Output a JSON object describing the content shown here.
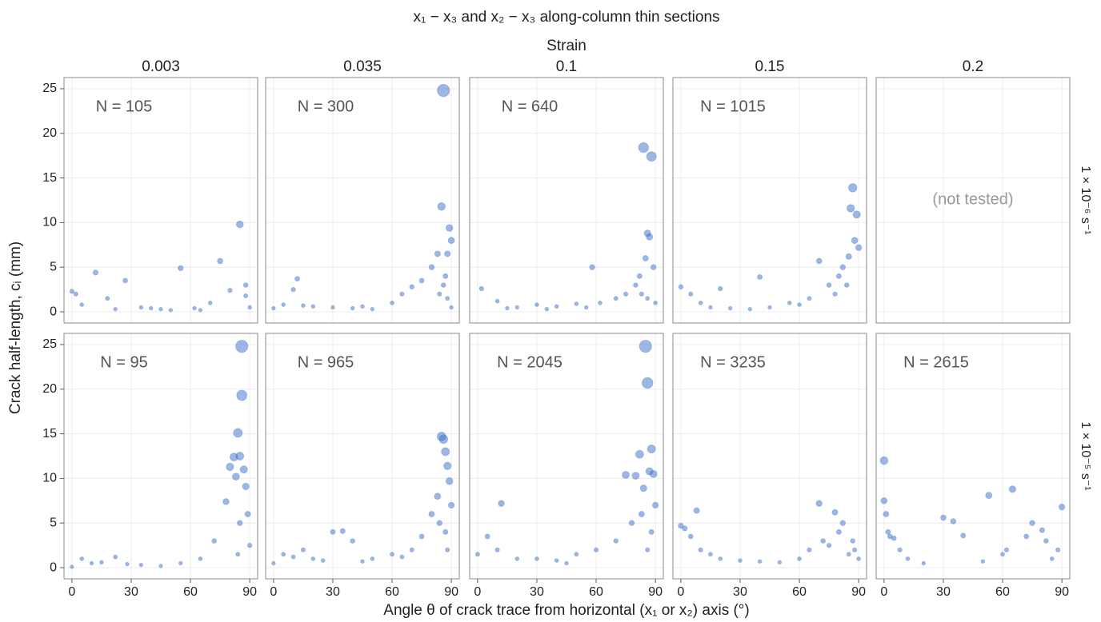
{
  "chart_data": {
    "type": "scatter",
    "title": "x₁ − x₃ and x₂ − x₃ along-column thin sections",
    "subtitle": "Strain",
    "columns": [
      "0.003",
      "0.035",
      "0.1",
      "0.15",
      "0.2"
    ],
    "rows": [
      "1 × 10⁻⁶ s⁻¹",
      "1 × 10⁻⁵ s⁻¹"
    ],
    "x_label": "Angle θ of crack trace from horizontal (x₁ or x₂) axis  (°)",
    "y_label": "Crack half-length, cᵢ  (mm)",
    "xlim": [
      -4,
      94
    ],
    "xticks": [
      0,
      30,
      60,
      90
    ],
    "ylim": [
      -1.25,
      26.25
    ],
    "yticks": [
      0,
      5,
      10,
      15,
      20,
      25
    ],
    "grid": true,
    "color": "#3a6fc8",
    "panels": [
      [
        {
          "annotation": "N = 105",
          "x": [
            0,
            2,
            12,
            18,
            27,
            35,
            45,
            55,
            62,
            75,
            80,
            85,
            88,
            90,
            5,
            22,
            50,
            70,
            88,
            40,
            65
          ],
          "y": [
            2.3,
            2,
            4.4,
            1.5,
            3.5,
            0.5,
            0.3,
            4.9,
            0.4,
            5.7,
            2.4,
            9.8,
            3,
            0.5,
            0.8,
            0.3,
            0.2,
            1,
            1.8,
            0.4,
            0.2
          ]
        },
        {
          "annotation": "N = 300",
          "x": [
            0,
            5,
            10,
            12,
            20,
            30,
            40,
            50,
            60,
            65,
            70,
            75,
            80,
            83,
            85,
            86,
            87,
            88,
            89,
            90,
            90,
            88,
            84,
            86,
            15,
            45
          ],
          "y": [
            0.4,
            0.8,
            2.5,
            3.7,
            0.6,
            0.5,
            0.4,
            0.3,
            1,
            2,
            2.8,
            3.5,
            5,
            6.5,
            11.8,
            24.8,
            4,
            6.5,
            9.4,
            8,
            0.5,
            1.5,
            2,
            3,
            0.7,
            0.6
          ]
        },
        {
          "annotation": "N = 640",
          "x": [
            2,
            10,
            20,
            30,
            40,
            50,
            58,
            62,
            70,
            75,
            80,
            82,
            84,
            86,
            88,
            89,
            90,
            87,
            85,
            83,
            86,
            15,
            35,
            55
          ],
          "y": [
            2.6,
            1.2,
            0.5,
            0.8,
            0.6,
            0.9,
            5,
            1,
            1.5,
            2,
            3,
            4,
            18.4,
            8.8,
            17.4,
            5,
            1,
            8.4,
            6,
            2,
            1.5,
            0.4,
            0.3,
            0.5
          ]
        },
        {
          "annotation": "N = 1015",
          "x": [
            0,
            5,
            10,
            15,
            25,
            35,
            45,
            55,
            65,
            70,
            75,
            80,
            82,
            84,
            86,
            87,
            88,
            89,
            90,
            85,
            78,
            60,
            20,
            40
          ],
          "y": [
            2.8,
            2,
            1,
            0.5,
            0.4,
            0.3,
            0.5,
            1,
            1.5,
            5.7,
            3,
            4,
            5,
            3,
            11.6,
            13.9,
            8,
            10.9,
            7.2,
            6.2,
            2,
            0.8,
            2.6,
            3.9
          ]
        },
        {
          "annotation": "(not tested)",
          "x": [],
          "y": []
        }
      ],
      [
        {
          "annotation": "N = 95",
          "x": [
            0,
            5,
            10,
            15,
            22,
            28,
            35,
            45,
            55,
            65,
            72,
            78,
            80,
            82,
            83,
            84,
            85,
            86,
            86,
            87,
            88,
            89,
            90,
            85,
            84
          ],
          "y": [
            0.1,
            1,
            0.5,
            0.6,
            1.2,
            0.4,
            0.3,
            0.2,
            0.5,
            1,
            3,
            7.4,
            11.3,
            12.4,
            10.2,
            15.1,
            12.5,
            19.3,
            24.8,
            11,
            9.1,
            6,
            2.5,
            5,
            1.5
          ]
        },
        {
          "annotation": "N = 965",
          "x": [
            0,
            5,
            10,
            15,
            20,
            25,
            30,
            35,
            40,
            50,
            60,
            65,
            70,
            75,
            80,
            83,
            85,
            86,
            87,
            88,
            89,
            90,
            84,
            87,
            88,
            45
          ],
          "y": [
            0.5,
            1.5,
            1.2,
            2,
            1,
            0.8,
            4,
            4.1,
            3,
            1,
            1.5,
            1.2,
            2,
            3.5,
            6,
            8,
            14.7,
            14.4,
            13,
            11.4,
            9.7,
            7,
            5,
            4,
            2,
            0.7
          ]
        },
        {
          "annotation": "N = 2045",
          "x": [
            0,
            5,
            10,
            12,
            20,
            30,
            40,
            50,
            60,
            70,
            75,
            78,
            80,
            82,
            84,
            85,
            86,
            87,
            88,
            89,
            90,
            83,
            88,
            86,
            45
          ],
          "y": [
            1.5,
            3.5,
            2,
            7.2,
            1,
            1,
            0.8,
            1.5,
            2,
            3,
            10.4,
            5,
            10.3,
            12.7,
            8.9,
            24.8,
            20.7,
            10.8,
            13.3,
            10.5,
            7,
            6,
            4,
            2,
            0.5
          ]
        },
        {
          "annotation": "N = 3235",
          "x": [
            0,
            2,
            5,
            8,
            10,
            15,
            20,
            30,
            40,
            50,
            60,
            65,
            70,
            72,
            75,
            78,
            80,
            82,
            85,
            88,
            90,
            87
          ],
          "y": [
            4.7,
            4.4,
            3.5,
            6.4,
            2,
            1.5,
            1,
            0.8,
            0.7,
            0.6,
            1,
            2,
            7.2,
            3,
            2.5,
            6.2,
            4,
            5,
            1.5,
            2,
            1,
            3
          ]
        },
        {
          "annotation": "N = 2615",
          "x": [
            0,
            0,
            1,
            2,
            3,
            5,
            8,
            12,
            20,
            30,
            35,
            40,
            50,
            53,
            60,
            62,
            65,
            72,
            75,
            80,
            82,
            85,
            88,
            90
          ],
          "y": [
            12,
            7.5,
            6,
            4,
            3.5,
            3.3,
            2,
            1,
            0.5,
            5.6,
            5.2,
            3.6,
            0.7,
            8.1,
            1.5,
            2,
            8.8,
            3.5,
            5,
            4.2,
            3,
            1,
            2,
            6.8
          ]
        }
      ]
    ]
  }
}
